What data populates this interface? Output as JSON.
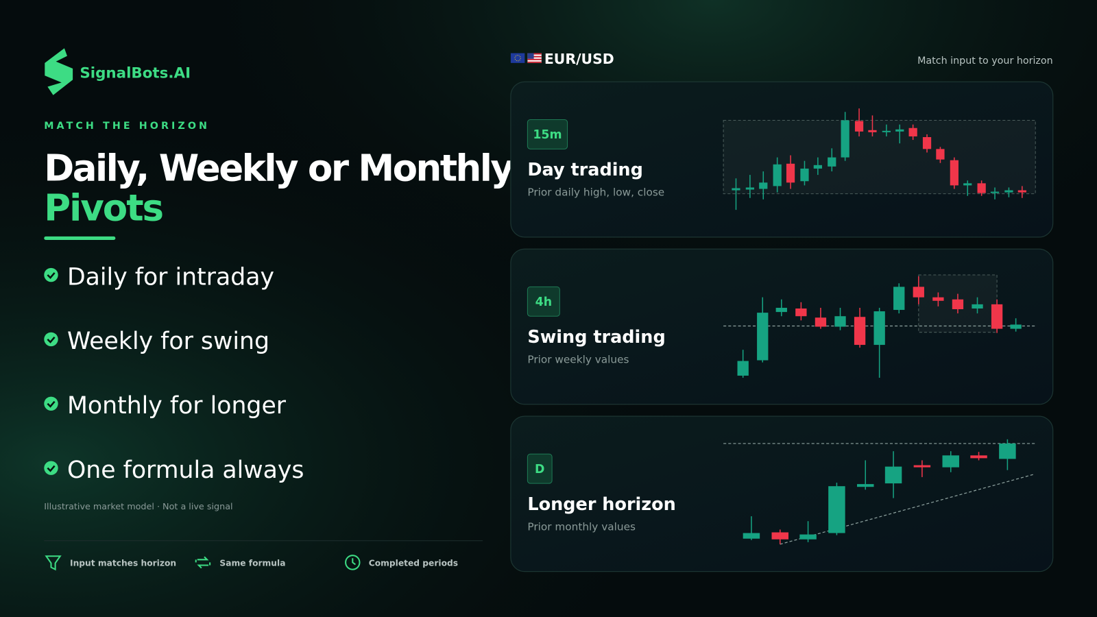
{
  "brand": "SignalBots.AI",
  "eyebrow": "MATCH THE HORIZON",
  "headline": {
    "line1": "Daily, Weekly or Monthly",
    "line2": "Pivots"
  },
  "bullets": [
    "Daily for intraday",
    "Weekly for swing",
    "Monthly for longer",
    "One formula always"
  ],
  "disclaimer": "Illustrative market model · Not a live signal",
  "features": [
    "Input matches horizon",
    "Same formula",
    "Completed periods"
  ],
  "pair": "EUR/USD",
  "hint": "Match input to your horizon",
  "cards": [
    {
      "tag": "15m",
      "title": "Day trading",
      "subtitle": "Prior daily high, low, close"
    },
    {
      "tag": "4h",
      "title": "Swing trading",
      "subtitle": "Prior weekly values"
    },
    {
      "tag": "D",
      "title": "Longer horizon",
      "subtitle": "Prior monthly values"
    }
  ]
}
